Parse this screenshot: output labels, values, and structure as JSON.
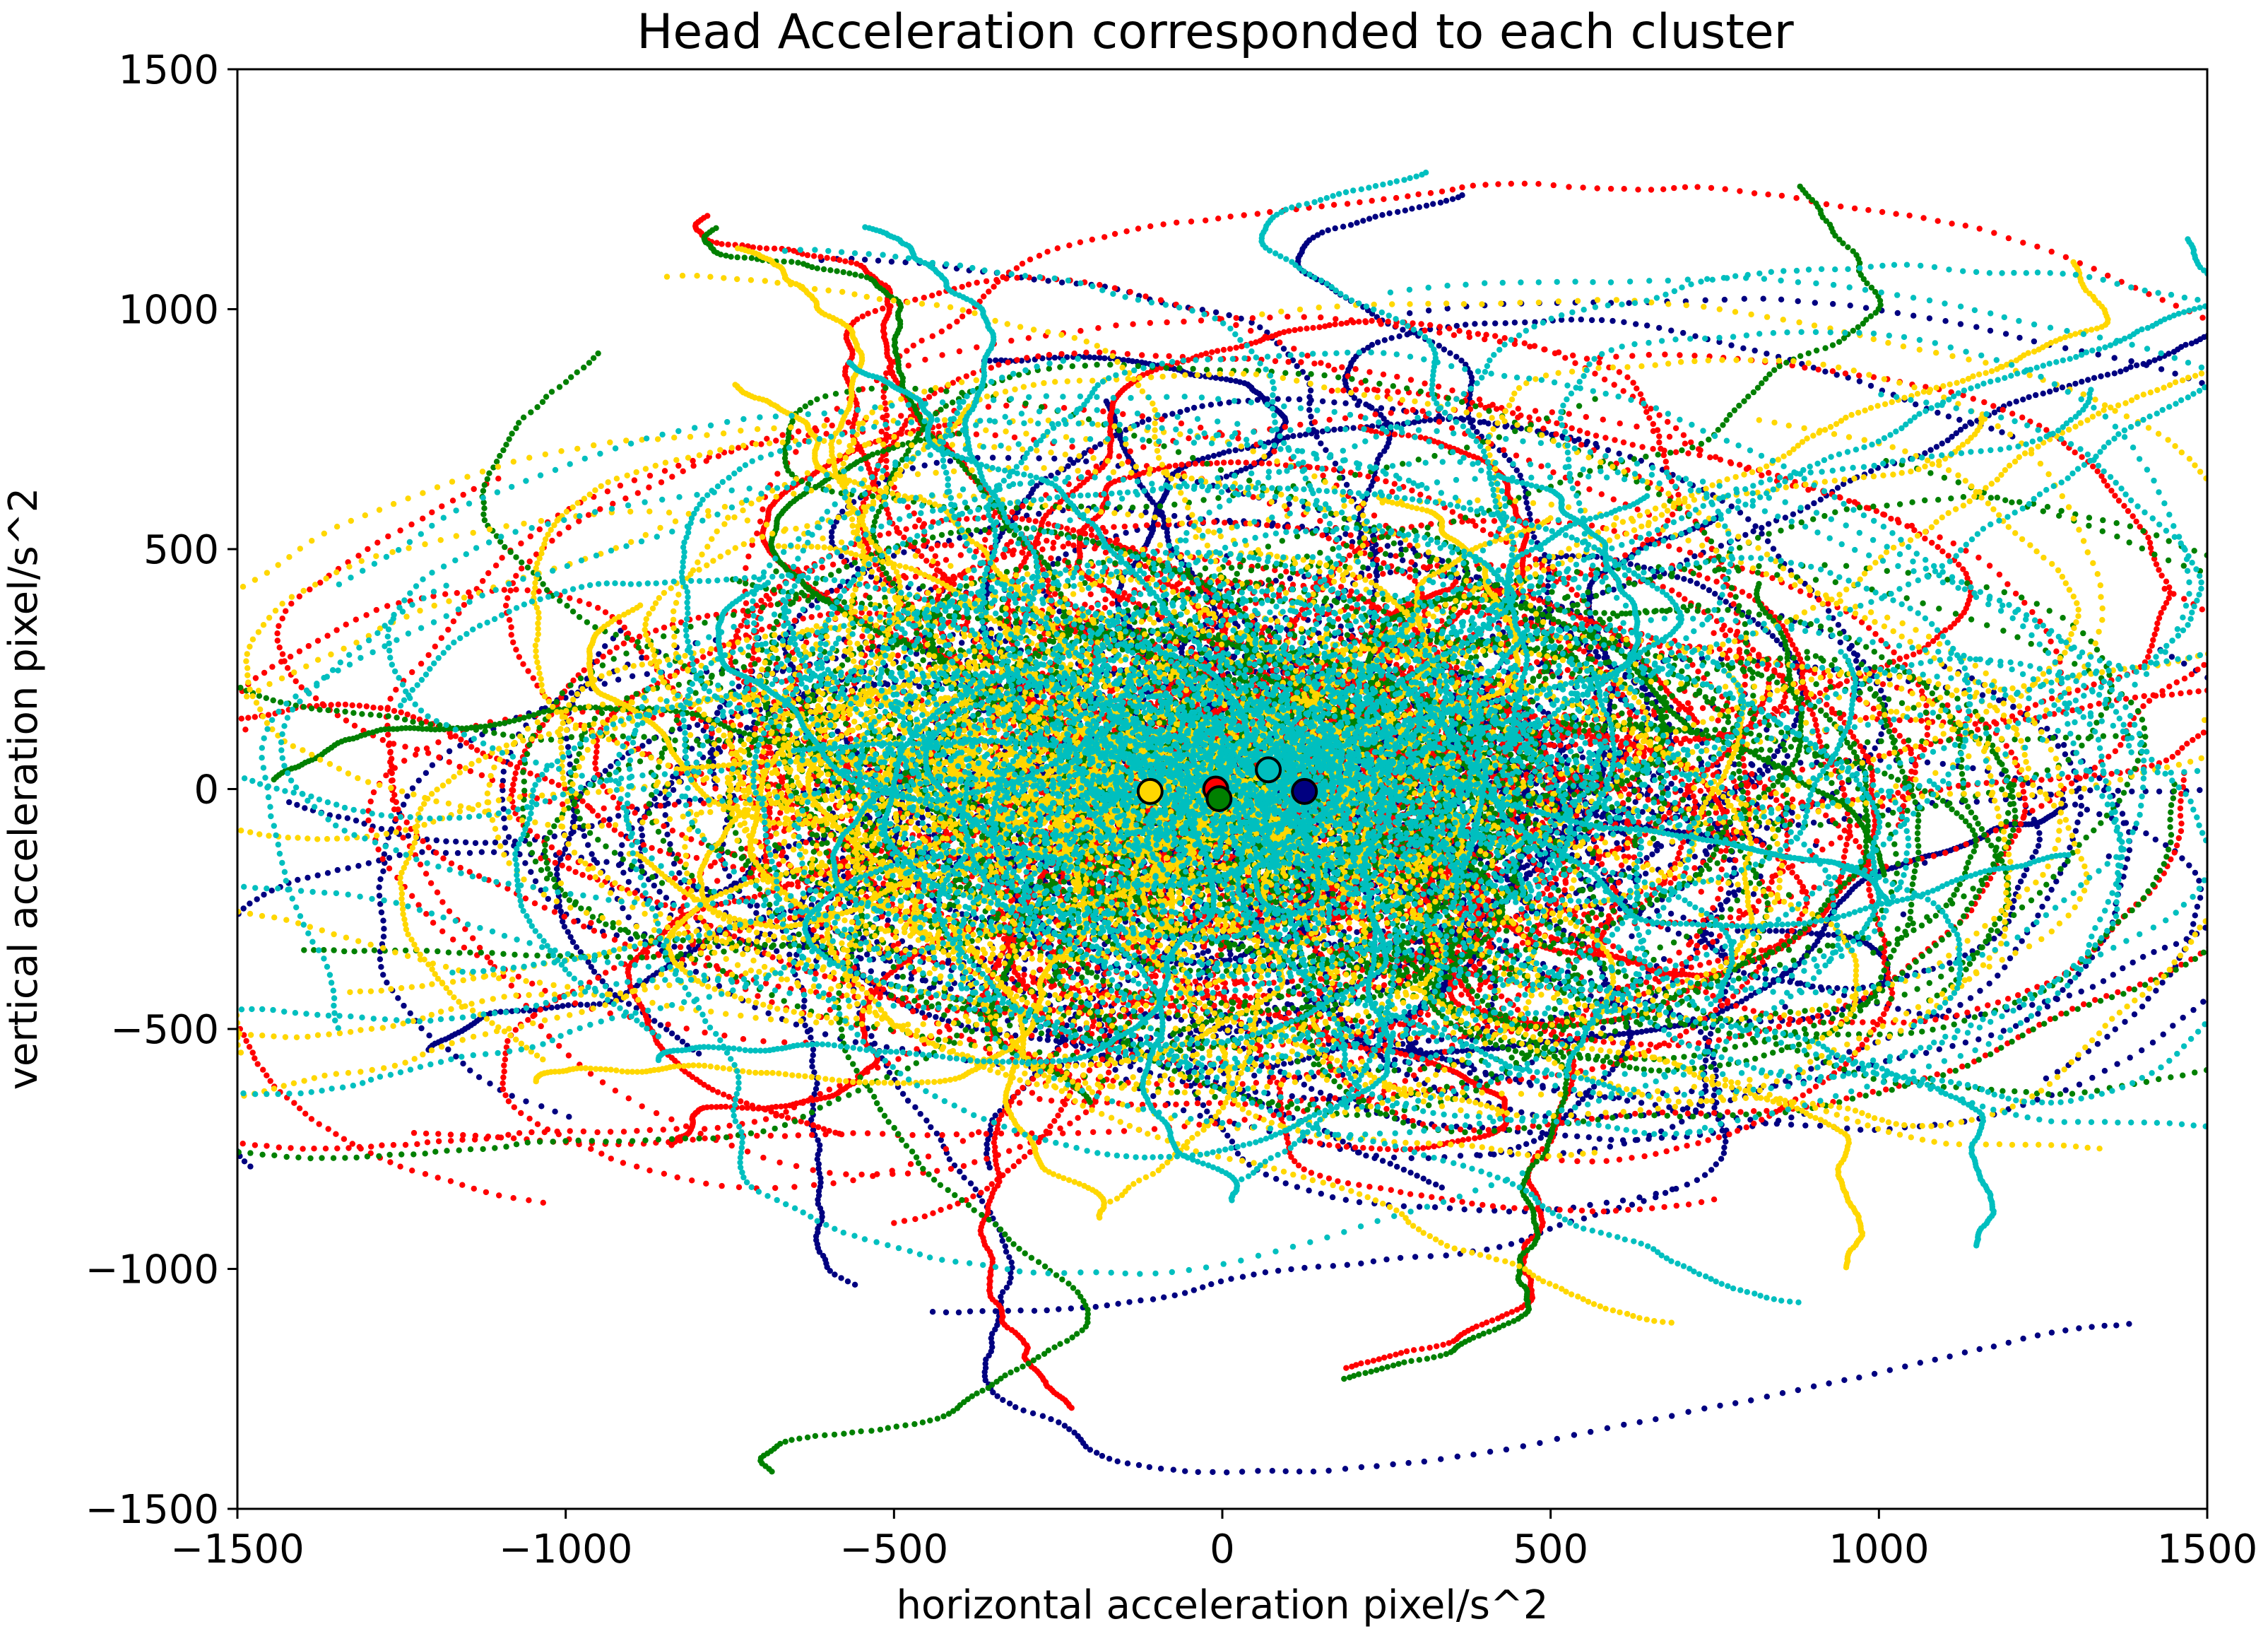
{
  "chart_data": {
    "type": "scatter",
    "title": "Head Acceleration corresponded to each cluster",
    "xlabel": "horizontal acceleration pixel/s^2",
    "ylabel": "vertical acceleration pixel/s^2",
    "xlim": [
      -1500,
      1500
    ],
    "ylim": [
      -1500,
      1500
    ],
    "xticks": [
      -1500,
      -1000,
      -500,
      0,
      500,
      1000,
      1500
    ],
    "yticks": [
      -1500,
      -1000,
      -500,
      0,
      500,
      1000,
      1500
    ],
    "xtick_labels": [
      "−1500",
      "−1000",
      "−500",
      "0",
      "500",
      "1000",
      "1500"
    ],
    "ytick_labels": [
      "−1500",
      "−1000",
      "−500",
      "0",
      "500",
      "1000",
      "1500"
    ],
    "grid": false,
    "legend": "none",
    "series": [
      {
        "color": "#000080",
        "centroid": [
          125,
          -5
        ],
        "spread": [
          520,
          330
        ],
        "density": 1.1
      },
      {
        "color": "#ff0000",
        "centroid": [
          -10,
          0
        ],
        "spread": [
          560,
          360
        ],
        "density": 1.3
      },
      {
        "color": "#008000",
        "centroid": [
          -5,
          -20
        ],
        "spread": [
          520,
          330
        ],
        "density": 1.0
      },
      {
        "color": "#ffd700",
        "centroid": [
          -110,
          -5
        ],
        "spread": [
          480,
          250
        ],
        "density": 1.3
      },
      {
        "color": "#00bfbf",
        "centroid": [
          70,
          40
        ],
        "spread": [
          420,
          270
        ],
        "density": 1.6
      }
    ]
  }
}
